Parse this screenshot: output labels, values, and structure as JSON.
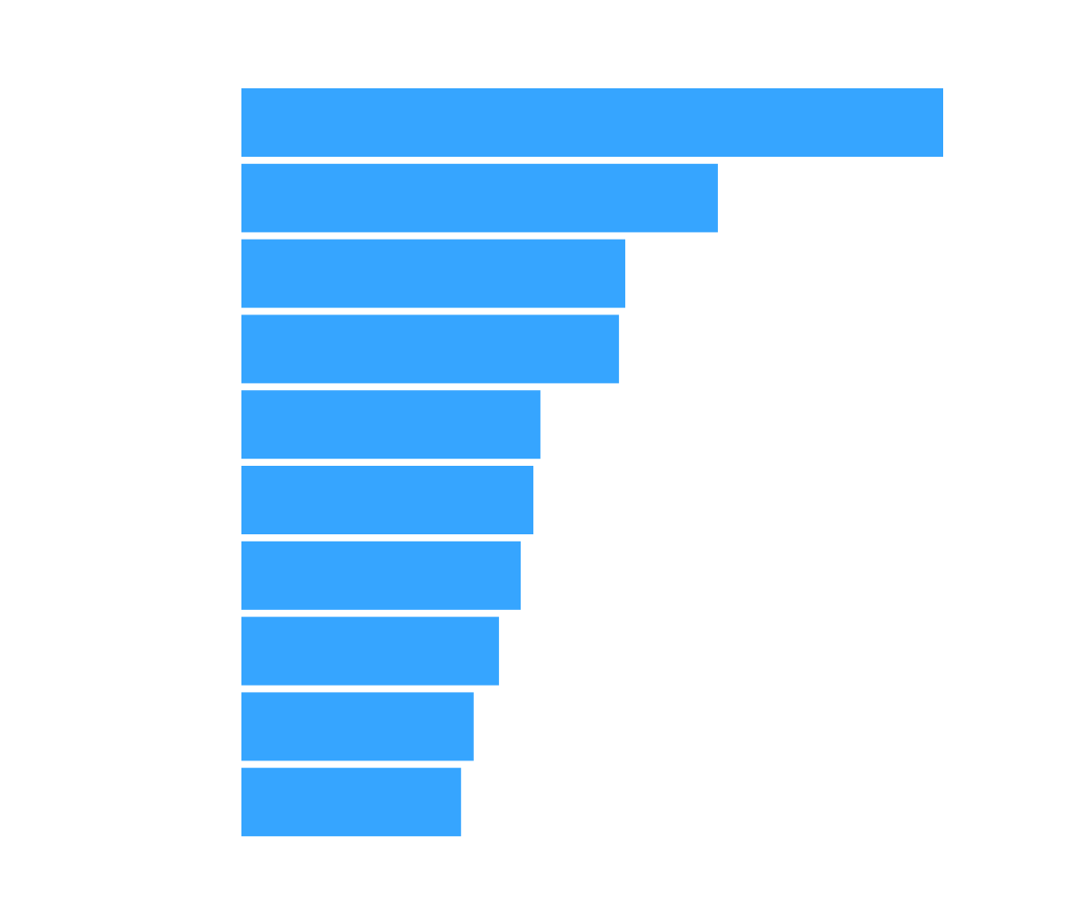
{
  "chart_data": {
    "type": "bar",
    "orientation": "horizontal",
    "values": [
      100,
      67.9,
      54.7,
      53.8,
      42.6,
      41.6,
      39.8,
      36.7,
      33.1,
      31.3
    ],
    "xlim": [
      0,
      100
    ],
    "grid": false,
    "legend": "none",
    "bar_color": "#36a5ff",
    "background_color": "#ffffff"
  }
}
